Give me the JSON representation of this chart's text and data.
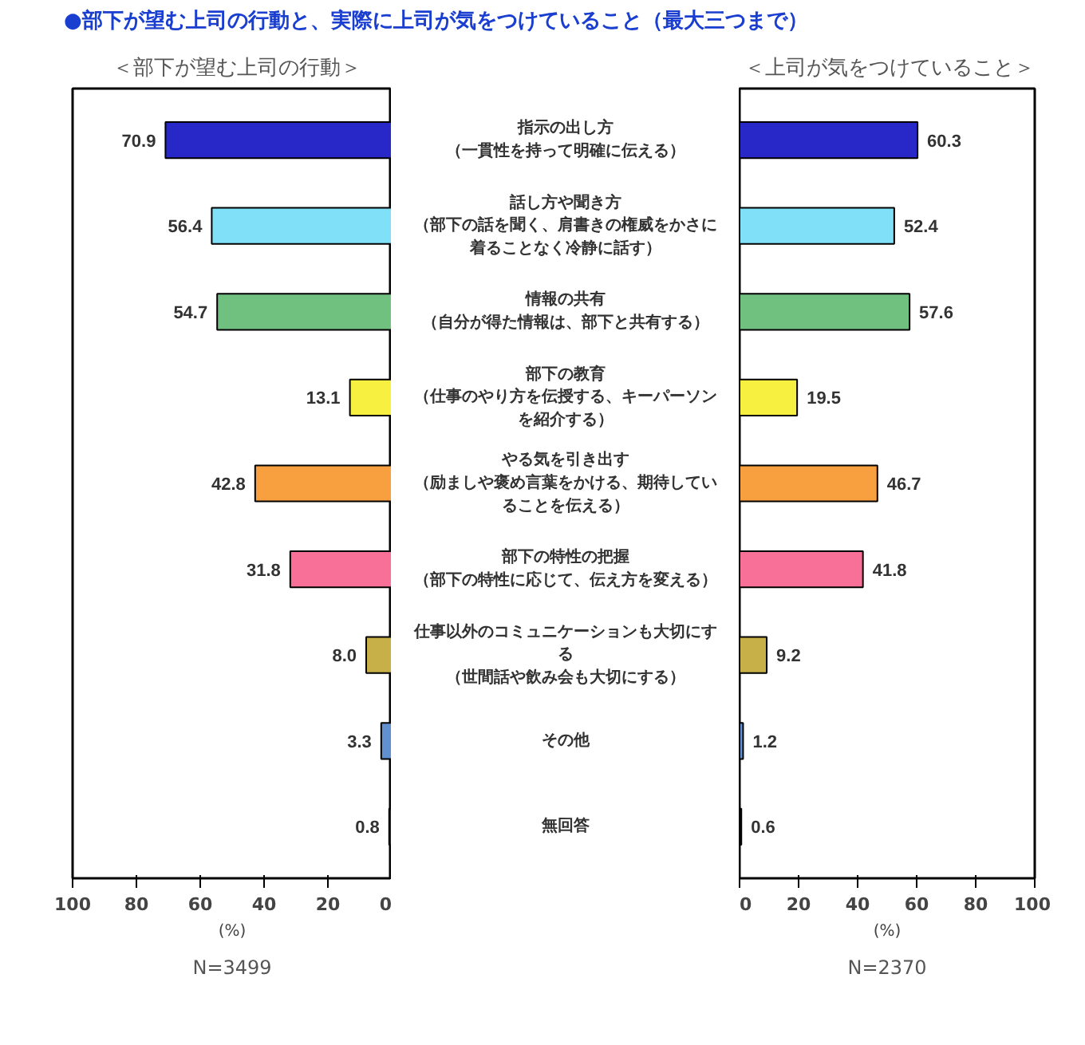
{
  "chart_data": [
    {
      "type": "bar",
      "orientation": "horizontal",
      "title": "●部下が望む上司の行動と、実際に上司が気をつけていること（最大三つまで）",
      "subtitle": "＜部下が望む上司の行動＞",
      "xlabel": "(%)",
      "categories": [
        "指示の出し方（一貫性を持って明確に伝える）",
        "話し方や聞き方（部下の話を聞く、肩書きの権威をかさに着ることなく冷静に話す）",
        "情報の共有（自分が得た情報は、部下と共有する）",
        "部下の教育（仕事のやり方を伝授する、キーパーソンを紹介する）",
        "やる気を引き出す（励ましや褒め言葉をかける、期待していることを伝える）",
        "部下の特性の把握（部下の特性に応じて、伝え方を変える）",
        "仕事以外のコミュニケーションも大切にする（世間話や飲み会も大切にする）",
        "その他",
        "無回答"
      ],
      "values": [
        70.9,
        56.4,
        54.7,
        13.1,
        42.8,
        31.8,
        8.0,
        3.3,
        0.8
      ],
      "value_labels": [
        "70.9",
        "56.4",
        "54.7",
        "13.1",
        "42.8",
        "31.8",
        "8.0",
        "3.3",
        "0.8"
      ],
      "colors": [
        "#2828c8",
        "#80e0f8",
        "#70c080",
        "#f8f040",
        "#f8a040",
        "#f87098",
        "#c8b048",
        "#6090d0",
        "#202020"
      ],
      "xlim": [
        100,
        0
      ],
      "xticks": [
        100,
        80,
        60,
        40,
        20,
        0
      ],
      "grid": false,
      "annotations": [
        "N=3499"
      ]
    },
    {
      "type": "bar",
      "orientation": "horizontal",
      "title": "＜上司が気をつけていること＞",
      "xlabel": "(%)",
      "categories": [
        "指示の出し方（一貫性を持って明確に伝える）",
        "話し方や聞き方（部下の話を聞く、肩書きの権威をかさに着ることなく冷静に話す）",
        "情報の共有（自分が得た情報は、部下と共有する）",
        "部下の教育（仕事のやり方を伝授する、キーパーソンを紹介する）",
        "やる気を引き出す（励ましや褒め言葉をかける、期待していることを伝える）",
        "部下の特性の把握（部下の特性に応じて、伝え方を変える）",
        "仕事以外のコミュニケーションも大切にする（世間話や飲み会も大切にする）",
        "その他",
        "無回答"
      ],
      "values": [
        60.3,
        52.4,
        57.6,
        19.5,
        46.7,
        41.8,
        9.2,
        1.2,
        0.6
      ],
      "value_labels": [
        "60.3",
        "52.4",
        "57.6",
        "19.5",
        "46.7",
        "41.8",
        "9.2",
        "1.2",
        "0.6"
      ],
      "colors": [
        "#2828c8",
        "#80e0f8",
        "#70c080",
        "#f8f040",
        "#f8a040",
        "#f87098",
        "#c8b048",
        "#6090d0",
        "#202020"
      ],
      "xlim": [
        0,
        100
      ],
      "xticks": [
        0,
        20,
        40,
        60,
        80,
        100
      ],
      "grid": false,
      "tick_labels": "x",
      "annotations": [
        "N=2370"
      ]
    }
  ]
}
